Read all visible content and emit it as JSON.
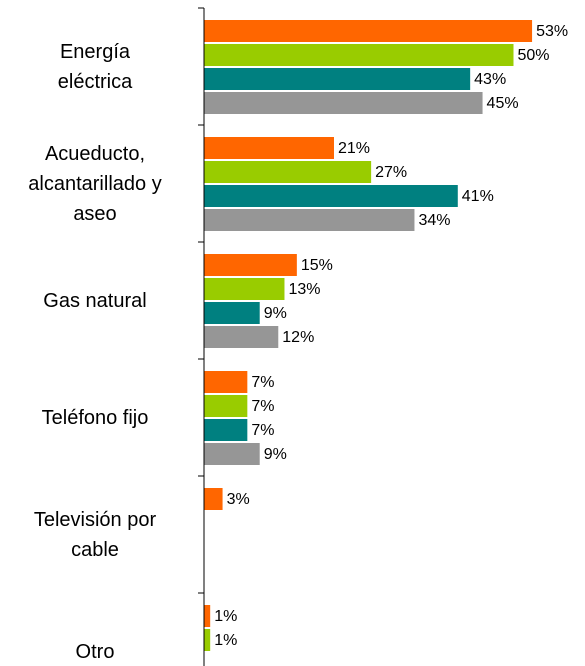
{
  "chart_data": {
    "type": "bar",
    "orientation": "horizontal",
    "categories": [
      "Energía\neléctrica",
      "Acueducto,\nalcantarillado y\naseo",
      "Gas natural",
      "Teléfono fijo",
      "Televisión por\ncable",
      "Otro"
    ],
    "series": [
      {
        "color": "#ff6600",
        "values": [
          53,
          21,
          15,
          7,
          3,
          1
        ],
        "value_labels": [
          "53%",
          "21%",
          "15%",
          "7%",
          "3%",
          "1%"
        ]
      },
      {
        "color": "#99cc00",
        "values": [
          50,
          27,
          13,
          7,
          null,
          1
        ],
        "value_labels": [
          "50%",
          "27%",
          "13%",
          "7%",
          null,
          "1%"
        ]
      },
      {
        "color": "#008080",
        "values": [
          43,
          41,
          9,
          7,
          null,
          null
        ],
        "value_labels": [
          "43%",
          "41%",
          "9%",
          "7%",
          null,
          null
        ]
      },
      {
        "color": "#969696",
        "values": [
          45,
          34,
          12,
          9,
          null,
          null
        ],
        "value_labels": [
          "45%",
          "34%",
          "12%",
          "9%",
          null,
          null
        ]
      }
    ]
  }
}
